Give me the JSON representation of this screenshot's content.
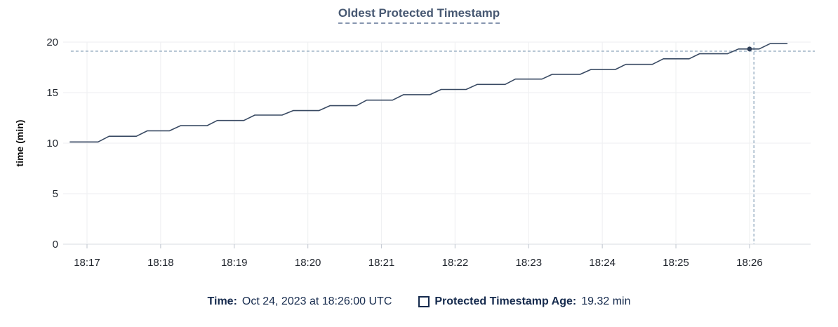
{
  "title": "Oldest Protected Timestamp",
  "colors": {
    "title": "#475872",
    "series_line": "#394a63",
    "series_point": "#303f58",
    "crosshair_dashed": "#a2b6c8",
    "gridline": "#f0f1f3",
    "axis_line": "#e0e3e8",
    "tick_mark": "#c8cdd5",
    "axis_text": "#21262e",
    "legend_text": "#152a4d"
  },
  "chart_data": {
    "type": "line",
    "step_style": true,
    "title": "Oldest Protected Timestamp",
    "xlabel": "",
    "ylabel": "time (min)",
    "x_tick_labels": [
      "18:17",
      "18:18",
      "18:19",
      "18:20",
      "18:21",
      "18:22",
      "18:23",
      "18:24",
      "18:25",
      "18:26"
    ],
    "y_ticks": [
      0,
      5,
      10,
      15,
      20
    ],
    "ylim": [
      0,
      20
    ],
    "x_range_min": [
      -0.324,
      9.83
    ],
    "grid": true,
    "series": [
      {
        "name": "Protected Timestamp Age",
        "unit": "min",
        "points_min_offset_from_18_17": [
          [
            -0.23,
            10.12
          ],
          [
            0.15,
            10.12
          ],
          [
            0.3,
            10.68
          ],
          [
            0.67,
            10.68
          ],
          [
            0.82,
            11.22
          ],
          [
            1.12,
            11.22
          ],
          [
            1.27,
            11.73
          ],
          [
            1.63,
            11.73
          ],
          [
            1.77,
            12.24
          ],
          [
            2.13,
            12.24
          ],
          [
            2.28,
            12.78
          ],
          [
            2.65,
            12.78
          ],
          [
            2.8,
            13.22
          ],
          [
            3.15,
            13.22
          ],
          [
            3.3,
            13.71
          ],
          [
            3.66,
            13.71
          ],
          [
            3.8,
            14.26
          ],
          [
            4.15,
            14.26
          ],
          [
            4.3,
            14.8
          ],
          [
            4.66,
            14.8
          ],
          [
            4.81,
            15.31
          ],
          [
            5.15,
            15.31
          ],
          [
            5.3,
            15.81
          ],
          [
            5.68,
            15.81
          ],
          [
            5.82,
            16.34
          ],
          [
            6.18,
            16.34
          ],
          [
            6.32,
            16.81
          ],
          [
            6.7,
            16.81
          ],
          [
            6.85,
            17.3
          ],
          [
            7.18,
            17.3
          ],
          [
            7.32,
            17.8
          ],
          [
            7.68,
            17.8
          ],
          [
            7.83,
            18.35
          ],
          [
            8.18,
            18.35
          ],
          [
            8.32,
            18.85
          ],
          [
            8.7,
            18.85
          ],
          [
            8.85,
            19.32
          ],
          [
            9.13,
            19.32
          ],
          [
            9.28,
            19.85
          ],
          [
            9.51,
            19.85
          ]
        ]
      }
    ],
    "crosshair": {
      "point": {
        "t": 9.0,
        "value": 19.32,
        "time": "18:26:00"
      },
      "hline_value": 19.1,
      "vline_t": 9.06,
      "hline_start_t": -0.22
    }
  },
  "legend": {
    "time_label": "Time:",
    "time_value": "Oct 24, 2023 at 18:26:00 UTC",
    "series_label": "Protected Timestamp Age:",
    "series_value": "19.32 min"
  }
}
